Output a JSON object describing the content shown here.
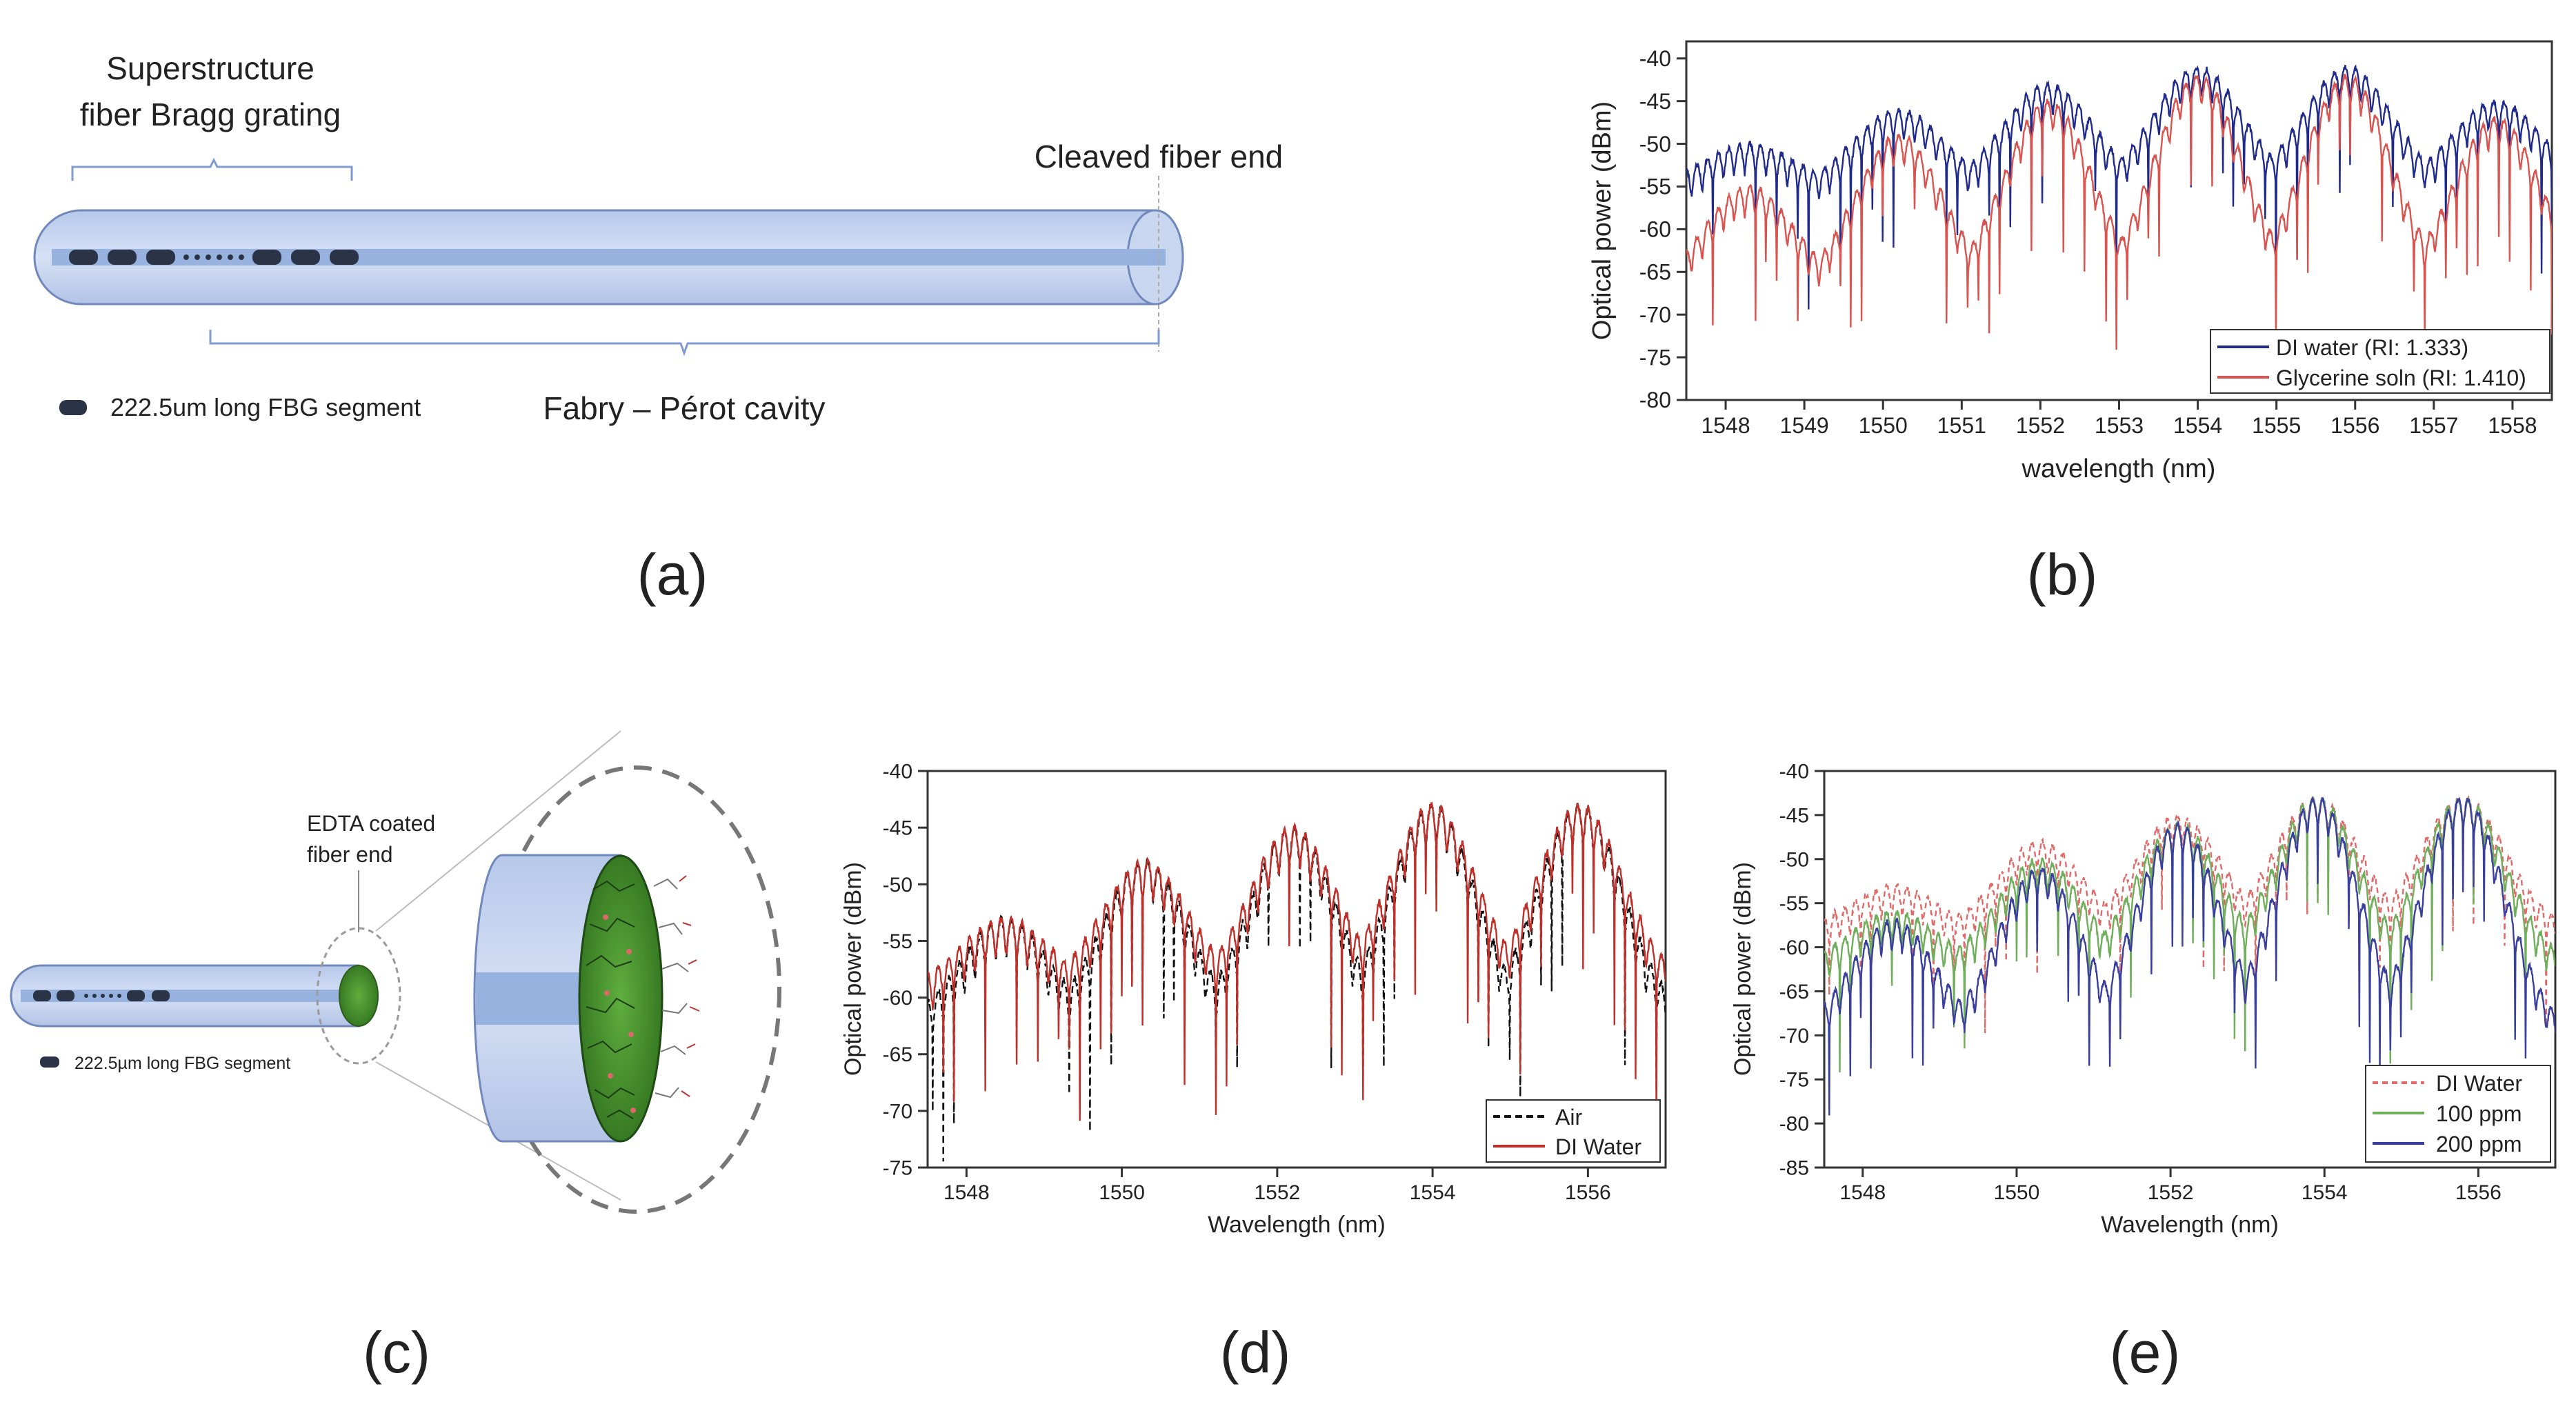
{
  "panel_labels": [
    "(a)",
    "(b)",
    "(c)",
    "(d)",
    "(e)"
  ],
  "diagram_a": {
    "grating_label_line1": "Superstructure",
    "grating_label_line2": "fiber Bragg grating",
    "cleaved_label": "Cleaved fiber end",
    "legend_text": "222.5um long FBG segment",
    "cavity_label": "Fabry – Pérot cavity",
    "colors": {
      "cladding": "#c5d3ef",
      "core": "#98b2e0",
      "segment": "#2a3446",
      "stroke": "#7088bb"
    }
  },
  "diagram_c": {
    "coating_label_line1": "EDTA coated",
    "coating_label_line2": "fiber end",
    "legend_text": "222.5µm long FBG segment",
    "colors": {
      "coating": "#3f8a28",
      "cladding": "#c5d3ef",
      "core": "#98b2e0"
    }
  },
  "chart_data": [
    {
      "id": "b",
      "type": "line",
      "title": "",
      "xlabel": "wavelength (nm)",
      "ylabel": "Optical power (dBm)",
      "xlim": [
        1547.5,
        1558.5
      ],
      "ylim": [
        -80,
        -38
      ],
      "xticks": [
        1548,
        1549,
        1550,
        1551,
        1552,
        1553,
        1554,
        1555,
        1556,
        1557,
        1558
      ],
      "yticks": [
        -40,
        -45,
        -50,
        -55,
        -60,
        -65,
        -70,
        -75,
        -80
      ],
      "grid": false,
      "legend_position": "bottom-right",
      "series": [
        {
          "name": "DI water (RI: 1.333)",
          "color": "#1f2a8a",
          "dash": "",
          "x": [
            1548.3,
            1550.2,
            1552.1,
            1554.0,
            1555.9,
            1557.8
          ],
          "y": [
            -50,
            -46,
            -43,
            -41,
            -41,
            -45
          ],
          "floor": -55
        },
        {
          "name": "Glycerine soln (RI: 1.410)",
          "color": "#d9534f",
          "dash": "",
          "x": [
            1548.3,
            1550.2,
            1552.1,
            1554.0,
            1555.9,
            1557.8
          ],
          "y": [
            -55,
            -49,
            -45,
            -42,
            -42,
            -47
          ],
          "floor": -67
        }
      ]
    },
    {
      "id": "d",
      "type": "line",
      "title": "",
      "xlabel": "Wavelength (nm)",
      "ylabel": "Optical power (dBm)",
      "xlim": [
        1547.5,
        1557.0
      ],
      "ylim": [
        -75,
        -40
      ],
      "xticks": [
        1548,
        1550,
        1552,
        1554,
        1556
      ],
      "yticks": [
        -40,
        -45,
        -50,
        -55,
        -60,
        -65,
        -70,
        -75
      ],
      "grid": false,
      "legend_position": "bottom-right",
      "series": [
        {
          "name": "Air",
          "color": "#111111",
          "dash": "10,6",
          "x": [
            1548.5,
            1550.3,
            1552.2,
            1554.0,
            1555.9
          ],
          "y": [
            -53,
            -48,
            -45,
            -43,
            -43
          ],
          "floor": -62
        },
        {
          "name": "DI Water",
          "color": "#c0302b",
          "dash": "",
          "x": [
            1548.5,
            1550.3,
            1552.2,
            1554.0,
            1555.9
          ],
          "y": [
            -53,
            -48,
            -45,
            -43,
            -43
          ],
          "floor": -59
        }
      ]
    },
    {
      "id": "e",
      "type": "line",
      "title": "",
      "xlabel": "Wavelength (nm)",
      "ylabel": "Optical power (dBm)",
      "xlim": [
        1547.5,
        1557.0
      ],
      "ylim": [
        -85,
        -40
      ],
      "xticks": [
        1548,
        1550,
        1552,
        1554,
        1556
      ],
      "yticks": [
        -40,
        -45,
        -50,
        -55,
        -60,
        -65,
        -70,
        -75,
        -80,
        -85
      ],
      "grid": false,
      "legend_position": "bottom-right",
      "series": [
        {
          "name": "DI Water",
          "color": "#e06a6a",
          "dash": "8,6",
          "x": [
            1548.4,
            1550.3,
            1552.1,
            1553.9,
            1555.8
          ],
          "y": [
            -53,
            -48,
            -45,
            -43,
            -43
          ],
          "floor": -58
        },
        {
          "name": "100 ppm",
          "color": "#6fae5a",
          "dash": "",
          "x": [
            1548.4,
            1550.3,
            1552.1,
            1553.9,
            1555.8
          ],
          "y": [
            -56,
            -50,
            -46,
            -43,
            -43
          ],
          "floor": -62
        },
        {
          "name": "200 ppm",
          "color": "#3a3f9e",
          "dash": "",
          "x": [
            1548.4,
            1550.3,
            1552.1,
            1553.9,
            1555.8
          ],
          "y": [
            -57,
            -51,
            -46,
            -43,
            -43
          ],
          "floor": -70
        }
      ]
    }
  ]
}
